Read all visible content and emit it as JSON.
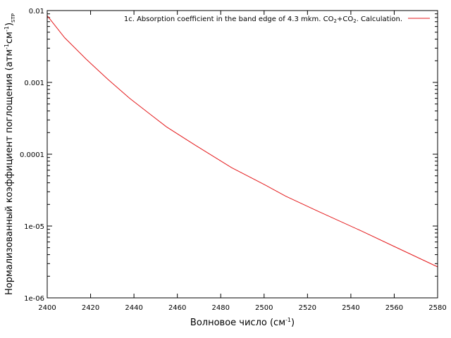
{
  "chart_data": {
    "type": "line",
    "title": "",
    "xlabel": {
      "main": "Волновое число (см",
      "sup": "-1",
      "close": ")"
    },
    "ylabel": {
      "part1": "Нормализованный коэффициент поглощения (атм",
      "sup1": "-1",
      "part2": "см",
      "sup2": "-1",
      "part3": ")",
      "sub": "STP"
    },
    "x_scale": "linear",
    "y_scale": "log",
    "xlim": [
      2400,
      2580
    ],
    "ylim": [
      1e-06,
      0.01
    ],
    "x_ticks": [
      {
        "value": 2400,
        "label": "2400"
      },
      {
        "value": 2420,
        "label": "2420"
      },
      {
        "value": 2440,
        "label": "2440"
      },
      {
        "value": 2460,
        "label": "2460"
      },
      {
        "value": 2480,
        "label": "2480"
      },
      {
        "value": 2500,
        "label": "2500"
      },
      {
        "value": 2520,
        "label": "2520"
      },
      {
        "value": 2540,
        "label": "2540"
      },
      {
        "value": 2560,
        "label": "2560"
      },
      {
        "value": 2580,
        "label": "2580"
      }
    ],
    "y_ticks": [
      {
        "value": 0.01,
        "label": "0.01"
      },
      {
        "value": 0.001,
        "label": "0.001"
      },
      {
        "value": 0.0001,
        "label": "0.0001"
      },
      {
        "value": 1e-05,
        "label": "1e-05"
      },
      {
        "value": 1e-06,
        "label": "1e-06"
      }
    ],
    "grid": false,
    "legend_position": "top-right",
    "series": [
      {
        "name": "1c. Absorption coefficient in the band edge of 4.3 mkm. CO2+CO2. Calculation.",
        "name_parts": {
          "t1": "1c. Absorption coefficient in the band edge of 4.3 mkm. CO",
          "s1": "2",
          "t2": "+CO",
          "s2": "2",
          "t3": ". Calculation."
        },
        "color": "#e41a1c",
        "x": [
          2400,
          2408,
          2418,
          2428,
          2438,
          2448,
          2455,
          2468,
          2485,
          2500,
          2510,
          2525,
          2545,
          2560,
          2580
        ],
        "y": [
          0.0085,
          0.0042,
          0.0021,
          0.0011,
          0.0006,
          0.00035,
          0.00024,
          0.000135,
          6.5e-05,
          3.8e-05,
          2.6e-05,
          1.6e-05,
          8.5e-06,
          5.2e-06,
          2.7e-06
        ]
      }
    ]
  }
}
